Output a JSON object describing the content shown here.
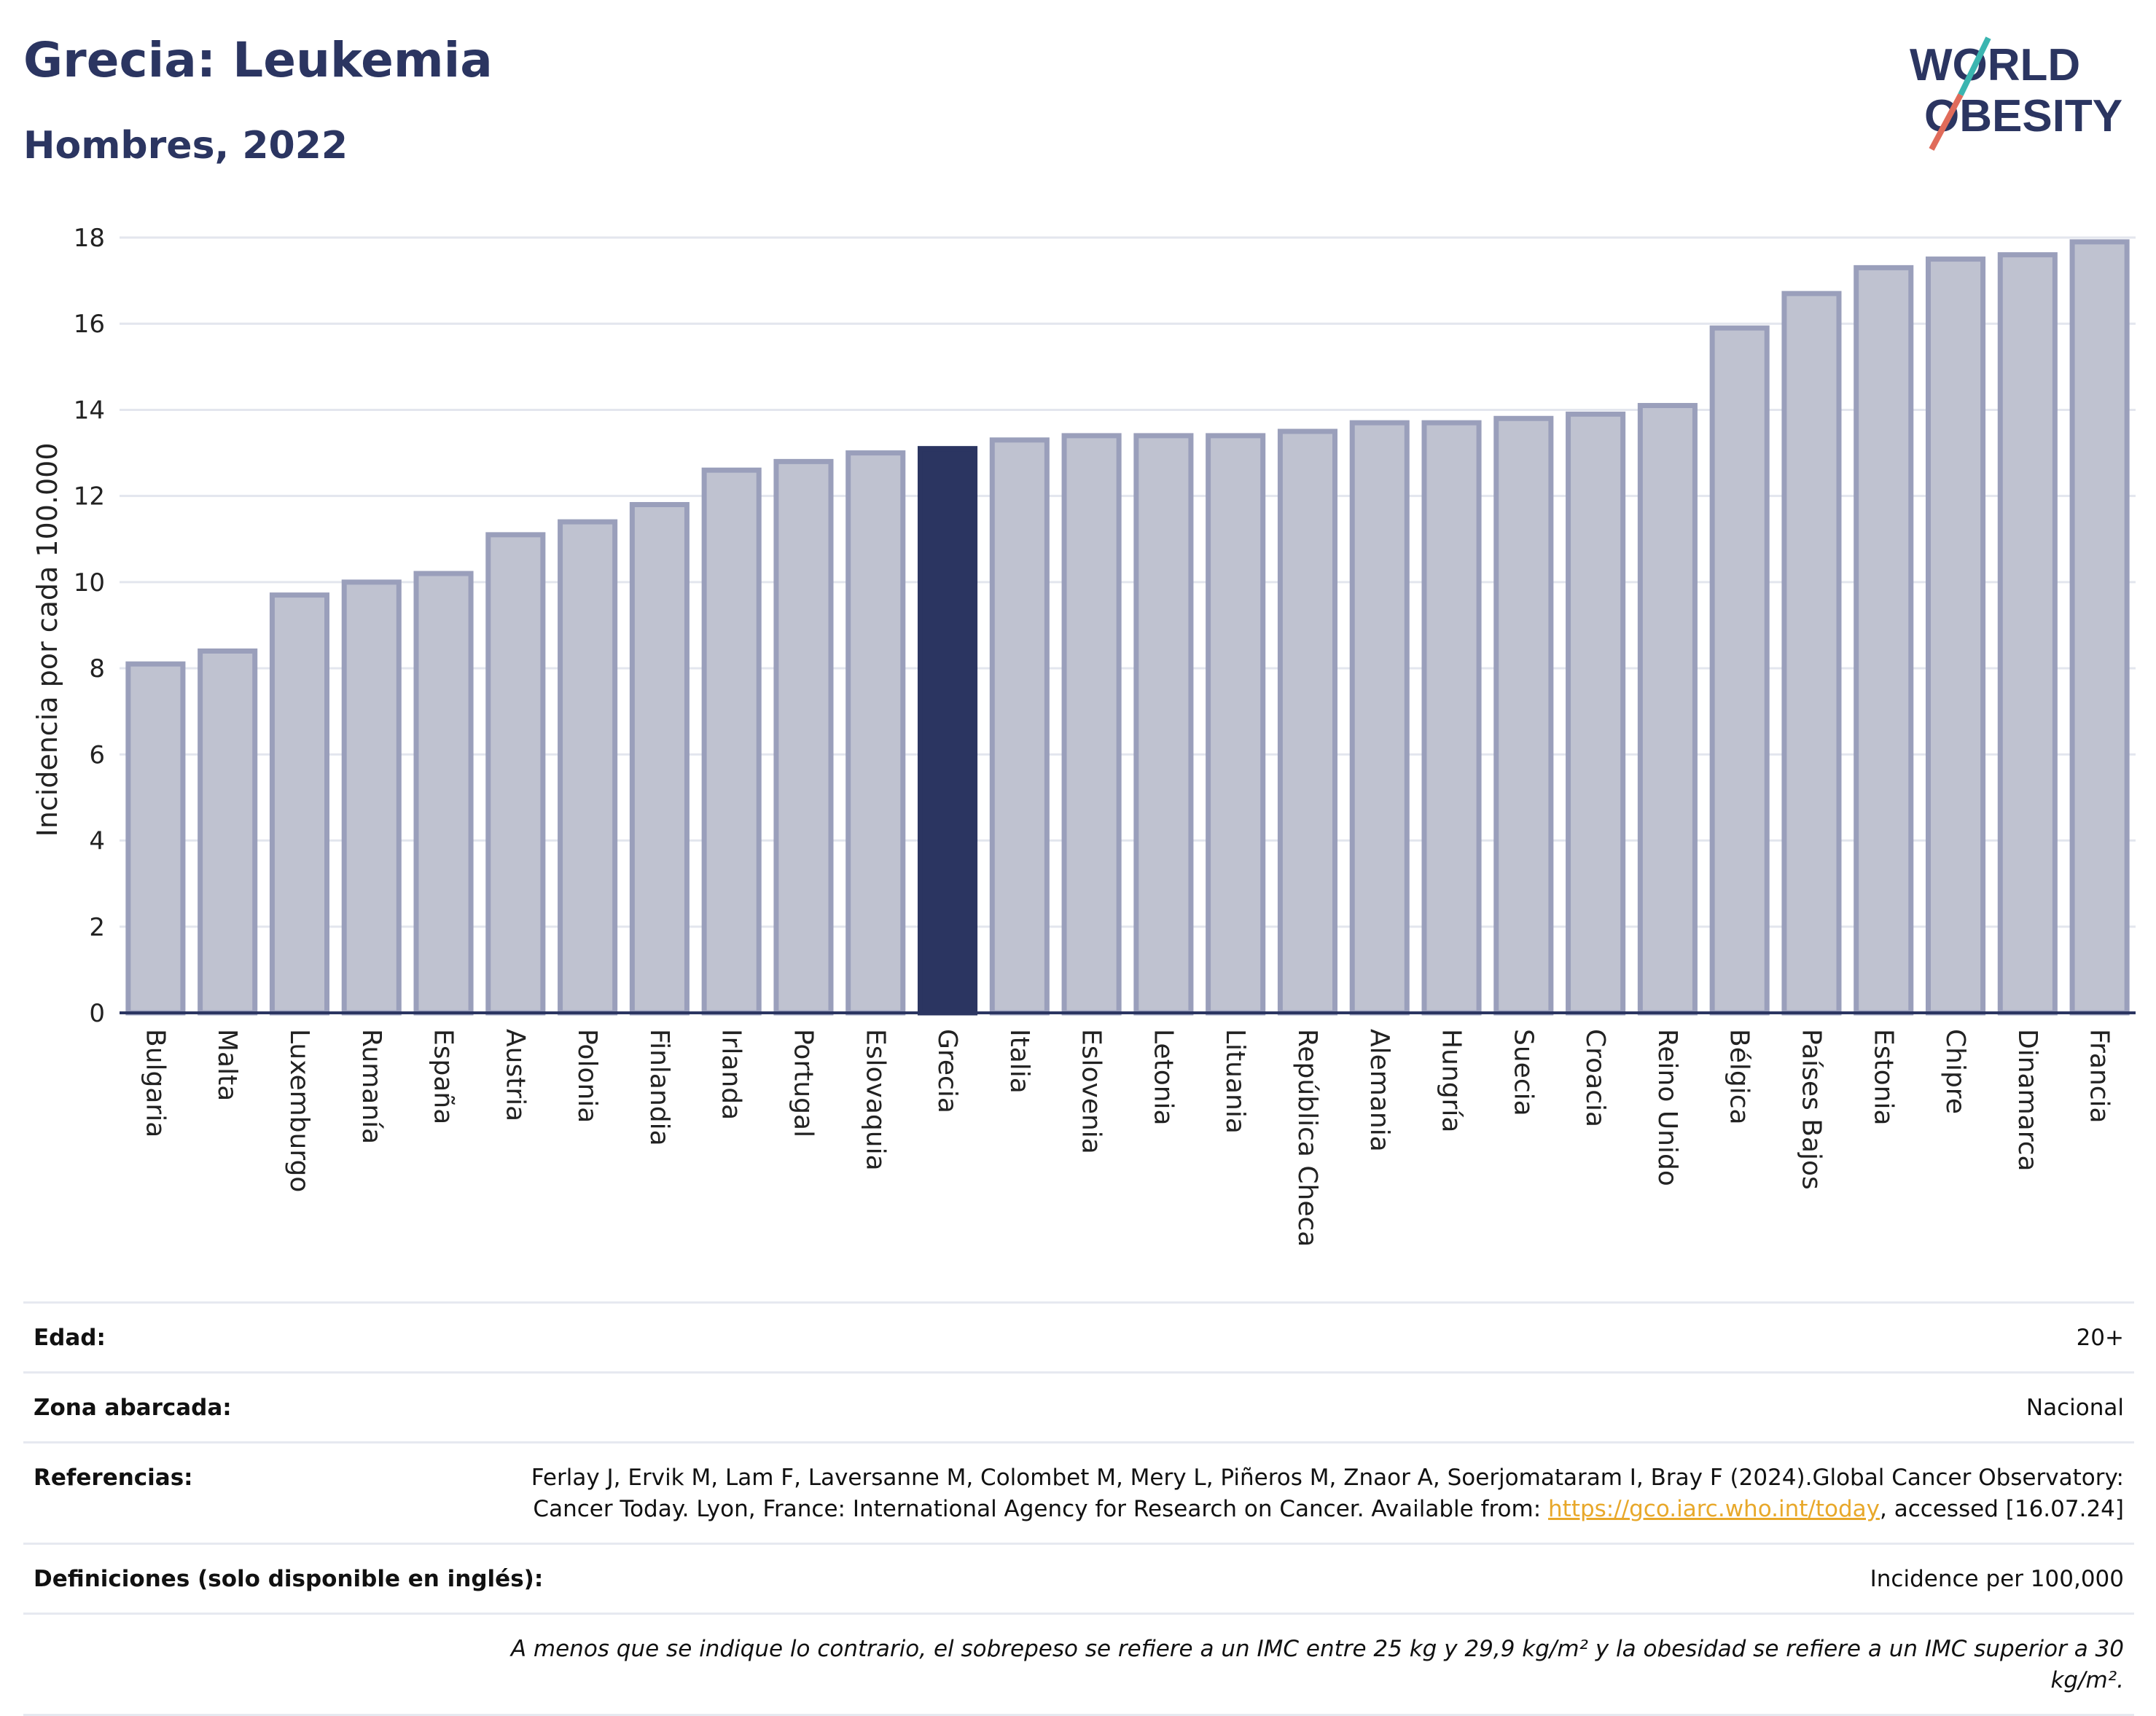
{
  "header": {
    "title": "Grecia: Leukemia",
    "subtitle": "Hombres, 2022",
    "logo_line1": "WORLD",
    "logo_line2": "OBESITY"
  },
  "chart_data": {
    "type": "bar",
    "ylabel": "Incidencia por cada 100.000",
    "xlabel": "",
    "ylim": [
      0,
      18
    ],
    "yticks": [
      0,
      2,
      4,
      6,
      8,
      10,
      12,
      14,
      16,
      18
    ],
    "grid": true,
    "highlight": "Grecia",
    "colors": {
      "bar": "#bfc2d0",
      "bar_border": "#9a9fbb",
      "highlight": "#2b3561",
      "grid": "#e3e6ee",
      "axis": "#2b3561"
    },
    "categories": [
      "Bulgaria",
      "Malta",
      "Luxemburgo",
      "Rumanía",
      "España",
      "Austria",
      "Polonia",
      "Finlandia",
      "Irlanda",
      "Portugal",
      "Eslovaquia",
      "Grecia",
      "Italia",
      "Eslovenia",
      "Letonia",
      "Lituania",
      "República Checa",
      "Alemania",
      "Hungría",
      "Suecia",
      "Croacia",
      "Reino Unido",
      "Bélgica",
      "Países Bajos",
      "Estonia",
      "Chipre",
      "Dinamarca",
      "Francia"
    ],
    "values": [
      8.1,
      8.4,
      9.7,
      10.0,
      10.2,
      11.1,
      11.4,
      11.8,
      12.6,
      12.8,
      13.0,
      13.1,
      13.3,
      13.4,
      13.4,
      13.4,
      13.5,
      13.7,
      13.7,
      13.8,
      13.9,
      14.1,
      15.9,
      16.7,
      17.3,
      17.5,
      17.6,
      17.9
    ]
  },
  "meta": {
    "edad_label": "Edad:",
    "edad_value": "20+",
    "zona_label": "Zona abarcada:",
    "zona_value": "Nacional",
    "ref_label": "Referencias:",
    "ref_text_1": "Ferlay J, Ervik M, Lam F, Laversanne M, Colombet M, Mery L, Piñeros M, Znaor A, Soerjomataram I, Bray F (2024).Global Cancer Observatory: Cancer Today. Lyon, France: International Agency for Research on Cancer. Available from: ",
    "ref_link": "https://gco.iarc.who.int/today",
    "ref_text_2": ", accessed [16.07.24]",
    "def_label": "Definiciones (solo disponible en inglés):",
    "def_value": "Incidence per 100,000",
    "note": "A menos que se indique lo contrario, el sobrepeso se refiere a un IMC entre 25 kg y 29,9 kg/m² y la obesidad se refiere a un IMC superior a 30 kg/m²."
  }
}
